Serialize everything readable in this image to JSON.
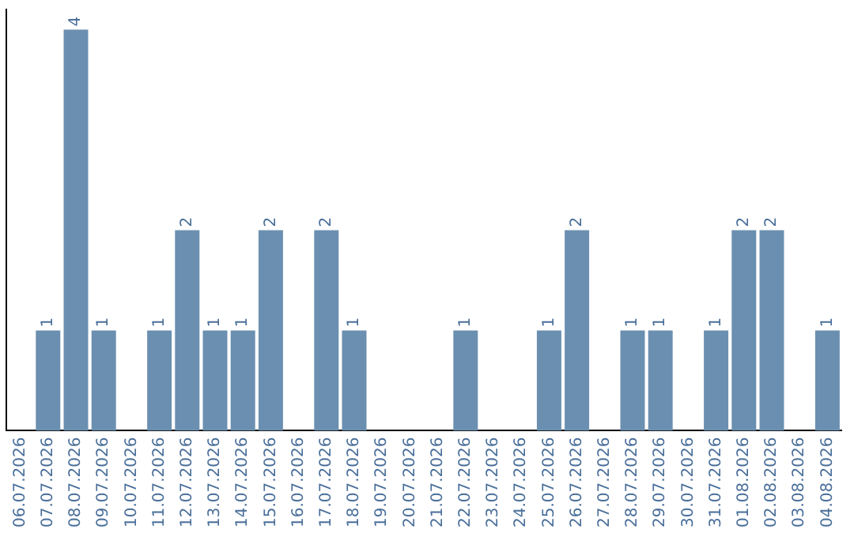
{
  "chart_data": {
    "type": "bar",
    "categories": [
      "06.07.2026",
      "07.07.2026",
      "08.07.2026",
      "09.07.2026",
      "10.07.2026",
      "11.07.2026",
      "12.07.2026",
      "13.07.2026",
      "14.07.2026",
      "15.07.2026",
      "16.07.2026",
      "17.07.2026",
      "18.07.2026",
      "19.07.2026",
      "20.07.2026",
      "21.07.2026",
      "22.07.2026",
      "23.07.2026",
      "24.07.2026",
      "25.07.2026",
      "26.07.2026",
      "27.07.2026",
      "28.07.2026",
      "29.07.2026",
      "30.07.2026",
      "31.07.2026",
      "01.08.2026",
      "02.08.2026",
      "03.08.2026",
      "04.08.2026"
    ],
    "values": [
      0,
      1,
      4,
      1,
      0,
      1,
      2,
      1,
      1,
      2,
      0,
      2,
      1,
      0,
      0,
      0,
      1,
      0,
      0,
      1,
      2,
      0,
      1,
      1,
      0,
      1,
      2,
      2,
      0,
      1
    ],
    "value_labels": [
      null,
      "1",
      "4",
      "1",
      null,
      "1",
      "2",
      "1",
      "1",
      "2",
      null,
      "2",
      "1",
      null,
      null,
      null,
      "1",
      null,
      null,
      "1",
      "2",
      null,
      "1",
      "1",
      null,
      "1",
      "2",
      "2",
      null,
      "1"
    ],
    "color": "#6b8fb0",
    "tick_labels": "x",
    "grid": false,
    "legend": false
  }
}
